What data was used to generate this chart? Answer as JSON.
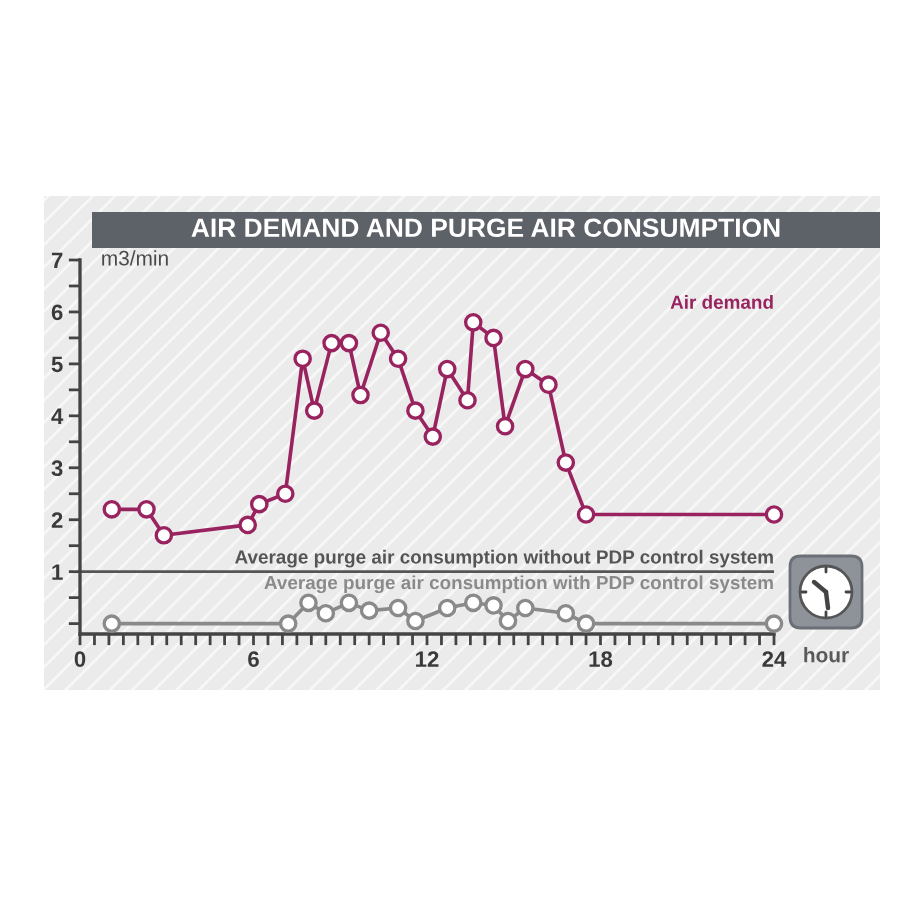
{
  "chart_data": {
    "type": "line",
    "title": "AIR DEMAND AND PURGE AIR CONSUMPTION",
    "ylabel": "m3/min",
    "xlabel": "hour",
    "xlim": [
      0,
      24
    ],
    "xticks": [
      0,
      {
        "value": 0.5,
        "label": null
      },
      {
        "value": 1,
        "label": null
      },
      {
        "value": 1.5,
        "label": null
      },
      {
        "value": 2,
        "label": null
      },
      {
        "value": 2.5,
        "label": null
      },
      {
        "value": 3,
        "label": null
      },
      {
        "value": 3.5,
        "label": null
      },
      {
        "value": 4,
        "label": null
      },
      {
        "value": 4.5,
        "label": null
      },
      {
        "value": 5,
        "label": null
      },
      {
        "value": 5.5,
        "label": null
      },
      6,
      {
        "value": 6.5,
        "label": null
      },
      {
        "value": 7,
        "label": null
      },
      {
        "value": 7.5,
        "label": null
      },
      {
        "value": 8,
        "label": null
      },
      {
        "value": 8.5,
        "label": null
      },
      {
        "value": 9,
        "label": null
      },
      {
        "value": 9.5,
        "label": null
      },
      {
        "value": 10,
        "label": null
      },
      {
        "value": 10.5,
        "label": null
      },
      {
        "value": 11,
        "label": null
      },
      {
        "value": 11.5,
        "label": null
      },
      12,
      {
        "value": 12.5,
        "label": null
      },
      {
        "value": 13,
        "label": null
      },
      {
        "value": 13.5,
        "label": null
      },
      {
        "value": 14,
        "label": null
      },
      {
        "value": 14.5,
        "label": null
      },
      {
        "value": 15,
        "label": null
      },
      {
        "value": 15.5,
        "label": null
      },
      {
        "value": 16,
        "label": null
      },
      {
        "value": 16.5,
        "label": null
      },
      {
        "value": 17,
        "label": null
      },
      {
        "value": 17.5,
        "label": null
      },
      18,
      {
        "value": 18.5,
        "label": null
      },
      {
        "value": 19,
        "label": null
      },
      {
        "value": 19.5,
        "label": null
      },
      {
        "value": 20,
        "label": null
      },
      {
        "value": 20.5,
        "label": null
      },
      {
        "value": 21,
        "label": null
      },
      {
        "value": 21.5,
        "label": null
      },
      {
        "value": 22,
        "label": null
      },
      {
        "value": 22.5,
        "label": null
      },
      {
        "value": 23,
        "label": null
      },
      {
        "value": 23.5,
        "label": null
      },
      24
    ],
    "ylim": [
      -0.2,
      7
    ],
    "yticks": [
      {
        "value": 0,
        "label": null
      },
      {
        "value": 0.5,
        "label": null
      },
      1,
      {
        "value": 1.5,
        "label": null
      },
      2,
      {
        "value": 2.5,
        "label": null
      },
      3,
      {
        "value": 3.5,
        "label": null
      },
      4,
      {
        "value": 4.5,
        "label": null
      },
      5,
      {
        "value": 5.5,
        "label": null
      },
      6,
      {
        "value": 6.5,
        "label": null
      },
      7
    ],
    "series": [
      {
        "name": "Air demand",
        "color": "#99235f",
        "x": [
          1.1,
          2.3,
          2.9,
          5.8,
          6.2,
          7.1,
          7.7,
          8.1,
          8.7,
          9.3,
          9.7,
          10.4,
          11.0,
          11.6,
          12.2,
          12.7,
          13.4,
          13.6,
          14.3,
          14.7,
          15.4,
          16.2,
          16.8,
          17.5,
          24
        ],
        "values": [
          2.2,
          2.2,
          1.7,
          1.9,
          2.3,
          2.5,
          5.1,
          4.1,
          5.4,
          5.4,
          4.4,
          5.6,
          5.1,
          4.1,
          3.6,
          4.9,
          4.3,
          5.8,
          5.5,
          3.8,
          4.9,
          4.6,
          3.1,
          2.1,
          2.1
        ]
      },
      {
        "name": "Average purge air consumption with PDP control system",
        "color": "#8a8a8a",
        "x": [
          1.1,
          7.2,
          7.9,
          8.5,
          9.3,
          10.0,
          11.0,
          11.6,
          12.7,
          13.6,
          14.3,
          14.8,
          15.4,
          16.8,
          17.5,
          24
        ],
        "values": [
          0,
          0,
          0.4,
          0.2,
          0.4,
          0.25,
          0.3,
          0.05,
          0.3,
          0.4,
          0.35,
          0.05,
          0.3,
          0.2,
          0,
          0
        ]
      }
    ],
    "ref_lines": [
      {
        "axis": "y",
        "value": 1,
        "label": "Average purge air consumption without PDP control system",
        "color": "#555555"
      }
    ],
    "marker": "circle",
    "line_style": "solid"
  }
}
